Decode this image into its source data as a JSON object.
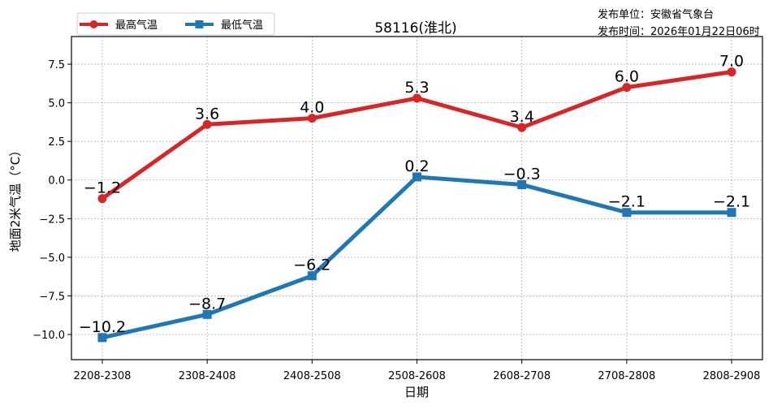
{
  "chart_data": {
    "type": "line",
    "title": "58116(淮北)",
    "publisher_line": "发布单位：安徽省气象台",
    "time_line": "发布时间：2026年01月22日06时",
    "xlabel": "日期",
    "ylabel": "地面2米气温（°C）",
    "categories": [
      "2208-2308",
      "2308-2408",
      "2408-2508",
      "2508-2608",
      "2608-2708",
      "2708-2808",
      "2808-2908"
    ],
    "ylim": [
      -11.63,
      9.29
    ],
    "yticks": [
      -10.0,
      -7.5,
      -5.0,
      -2.5,
      0.0,
      2.5,
      5.0,
      7.5
    ],
    "ytick_labels": [
      "−10.0",
      "−7.5",
      "−5.0",
      "−2.5",
      "0.0",
      "2.5",
      "5.0",
      "7.5"
    ],
    "grid": true,
    "legend_position": "top-left",
    "series": [
      {
        "name": "最高气温",
        "color": "#d62728",
        "marker": "circle",
        "values": [
          -1.2,
          3.6,
          4.0,
          5.3,
          3.4,
          6.0,
          7.0
        ],
        "labels": [
          "−1.2",
          "3.6",
          "4.0",
          "5.3",
          "3.4",
          "6.0",
          "7.0"
        ]
      },
      {
        "name": "最低气温",
        "color": "#1f77b4",
        "marker": "square",
        "values": [
          -10.2,
          -8.7,
          -6.2,
          0.2,
          -0.3,
          -2.1,
          -2.1
        ],
        "labels": [
          "−10.2",
          "−8.7",
          "−6.2",
          "0.2",
          "−0.3",
          "−2.1",
          "−2.1"
        ]
      }
    ]
  }
}
